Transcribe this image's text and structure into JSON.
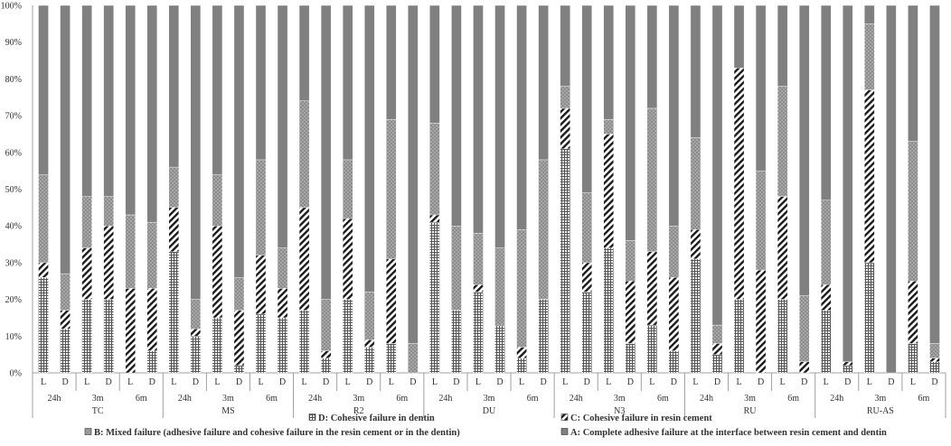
{
  "chart_data": {
    "type": "bar",
    "stacked": "percent",
    "ylim": [
      0,
      100
    ],
    "yticks": [
      "0%",
      "10%",
      "20%",
      "30%",
      "40%",
      "50%",
      "60%",
      "70%",
      "80%",
      "90%",
      "100%"
    ],
    "grid": false,
    "legend_position": "bottom",
    "groups": [
      {
        "label": "TC",
        "times": [
          {
            "label": "24h",
            "bars": [
              {
                "label": "L",
                "values": [
                  26,
                  4,
                  24,
                  46
                ]
              },
              {
                "label": "D",
                "values": [
                  12,
                  5,
                  10,
                  73
                ]
              }
            ]
          },
          {
            "label": "3m",
            "bars": [
              {
                "label": "L",
                "values": [
                  20,
                  14,
                  14,
                  52
                ]
              },
              {
                "label": "D",
                "values": [
                  20,
                  20,
                  8,
                  52
                ]
              }
            ]
          },
          {
            "label": "6m",
            "bars": [
              {
                "label": "L",
                "values": [
                  0,
                  23,
                  20,
                  57
                ]
              },
              {
                "label": "D",
                "values": [
                  6,
                  17,
                  18,
                  59
                ]
              }
            ]
          }
        ]
      },
      {
        "label": "MS",
        "times": [
          {
            "label": "24h",
            "bars": [
              {
                "label": "L",
                "values": [
                  33,
                  12,
                  11,
                  44
                ]
              },
              {
                "label": "D",
                "values": [
                  10,
                  2,
                  8,
                  80
                ]
              }
            ]
          },
          {
            "label": "3m",
            "bars": [
              {
                "label": "L",
                "values": [
                  15,
                  25,
                  14,
                  46
                ]
              },
              {
                "label": "D",
                "values": [
                  2,
                  15,
                  9,
                  74
                ]
              }
            ]
          },
          {
            "label": "6m",
            "bars": [
              {
                "label": "L",
                "values": [
                  16,
                  16,
                  26,
                  42
                ]
              },
              {
                "label": "D",
                "values": [
                  15,
                  8,
                  11,
                  66
                ]
              }
            ]
          }
        ]
      },
      {
        "label": "R2",
        "times": [
          {
            "label": "24h",
            "bars": [
              {
                "label": "L",
                "values": [
                  17,
                  28,
                  29,
                  26
                ]
              },
              {
                "label": "D",
                "values": [
                  4,
                  2,
                  14,
                  80
                ]
              }
            ]
          },
          {
            "label": "3m",
            "bars": [
              {
                "label": "L",
                "values": [
                  20,
                  22,
                  16,
                  42
                ]
              },
              {
                "label": "D",
                "values": [
                  7,
                  2,
                  13,
                  78
                ]
              }
            ]
          },
          {
            "label": "6m",
            "bars": [
              {
                "label": "L",
                "values": [
                  8,
                  23,
                  38,
                  31
                ]
              },
              {
                "label": "D",
                "values": [
                  0,
                  0,
                  8,
                  92
                ]
              }
            ]
          }
        ]
      },
      {
        "label": "DU",
        "times": [
          {
            "label": "24h",
            "bars": [
              {
                "label": "L",
                "values": [
                  41,
                  2,
                  25,
                  32
                ]
              },
              {
                "label": "D",
                "values": [
                  17,
                  0,
                  23,
                  60
                ]
              }
            ]
          },
          {
            "label": "3m",
            "bars": [
              {
                "label": "L",
                "values": [
                  22,
                  2,
                  14,
                  62
                ]
              },
              {
                "label": "D",
                "values": [
                  13,
                  0,
                  21,
                  66
                ]
              }
            ]
          },
          {
            "label": "6m",
            "bars": [
              {
                "label": "L",
                "values": [
                  4,
                  3,
                  32,
                  61
                ]
              },
              {
                "label": "D",
                "values": [
                  20,
                  0,
                  38,
                  42
                ]
              }
            ]
          }
        ]
      },
      {
        "label": "N3",
        "times": [
          {
            "label": "24h",
            "bars": [
              {
                "label": "L",
                "values": [
                  61,
                  11,
                  6,
                  22
                ]
              },
              {
                "label": "D",
                "values": [
                  22,
                  8,
                  19,
                  51
                ]
              }
            ]
          },
          {
            "label": "3m",
            "bars": [
              {
                "label": "L",
                "values": [
                  34,
                  31,
                  4,
                  31
                ]
              },
              {
                "label": "D",
                "values": [
                  8,
                  17,
                  11,
                  64
                ]
              }
            ]
          },
          {
            "label": "6m",
            "bars": [
              {
                "label": "L",
                "values": [
                  13,
                  20,
                  39,
                  28
                ]
              },
              {
                "label": "D",
                "values": [
                  6,
                  20,
                  14,
                  60
                ]
              }
            ]
          }
        ]
      },
      {
        "label": "RU",
        "times": [
          {
            "label": "24h",
            "bars": [
              {
                "label": "L",
                "values": [
                  31,
                  8,
                  25,
                  36
                ]
              },
              {
                "label": "D",
                "values": [
                  5,
                  3,
                  5,
                  87
                ]
              }
            ]
          },
          {
            "label": "3m",
            "bars": [
              {
                "label": "L",
                "values": [
                  20,
                  63,
                  0,
                  17
                ]
              },
              {
                "label": "D",
                "values": [
                  0,
                  28,
                  27,
                  45
                ]
              }
            ]
          },
          {
            "label": "6m",
            "bars": [
              {
                "label": "L",
                "values": [
                  20,
                  28,
                  30,
                  22
                ]
              },
              {
                "label": "D",
                "values": [
                  0,
                  3,
                  18,
                  79
                ]
              }
            ]
          }
        ]
      },
      {
        "label": "RU-AS",
        "times": [
          {
            "label": "24h",
            "bars": [
              {
                "label": "L",
                "values": [
                  17,
                  7,
                  23,
                  53
                ]
              },
              {
                "label": "D",
                "values": [
                  2,
                  1,
                  0,
                  97
                ]
              }
            ]
          },
          {
            "label": "3m",
            "bars": [
              {
                "label": "L",
                "values": [
                  30,
                  47,
                  18,
                  5
                ]
              },
              {
                "label": "D",
                "values": [
                  0,
                  0,
                  0,
                  100
                ]
              }
            ]
          },
          {
            "label": "6m",
            "bars": [
              {
                "label": "L",
                "values": [
                  8,
                  17,
                  38,
                  37
                ]
              },
              {
                "label": "D",
                "values": [
                  3,
                  1,
                  4,
                  92
                ]
              }
            ]
          }
        ]
      }
    ],
    "series": [
      {
        "key": "D",
        "name": "D: Cohesive failure in dentin",
        "pattern": "grid",
        "color": "#666666"
      },
      {
        "key": "C",
        "name": "C: Cohesive failure in resin cement",
        "pattern": "diagonal",
        "color": "#222222"
      },
      {
        "key": "B",
        "name": "B: Mixed failure (adhesive failure and cohesive failure in the resin cement or in the dentin)",
        "pattern": "dots",
        "color": "#8c8c8c"
      },
      {
        "key": "A",
        "name": "A: Complete adhesive failure at the interface between resin cement and dentin",
        "pattern": "solid",
        "color": "#808080"
      }
    ],
    "colors": {
      "axis": "#a0a0a0",
      "text": "#333333",
      "background": "#ffffff"
    }
  }
}
